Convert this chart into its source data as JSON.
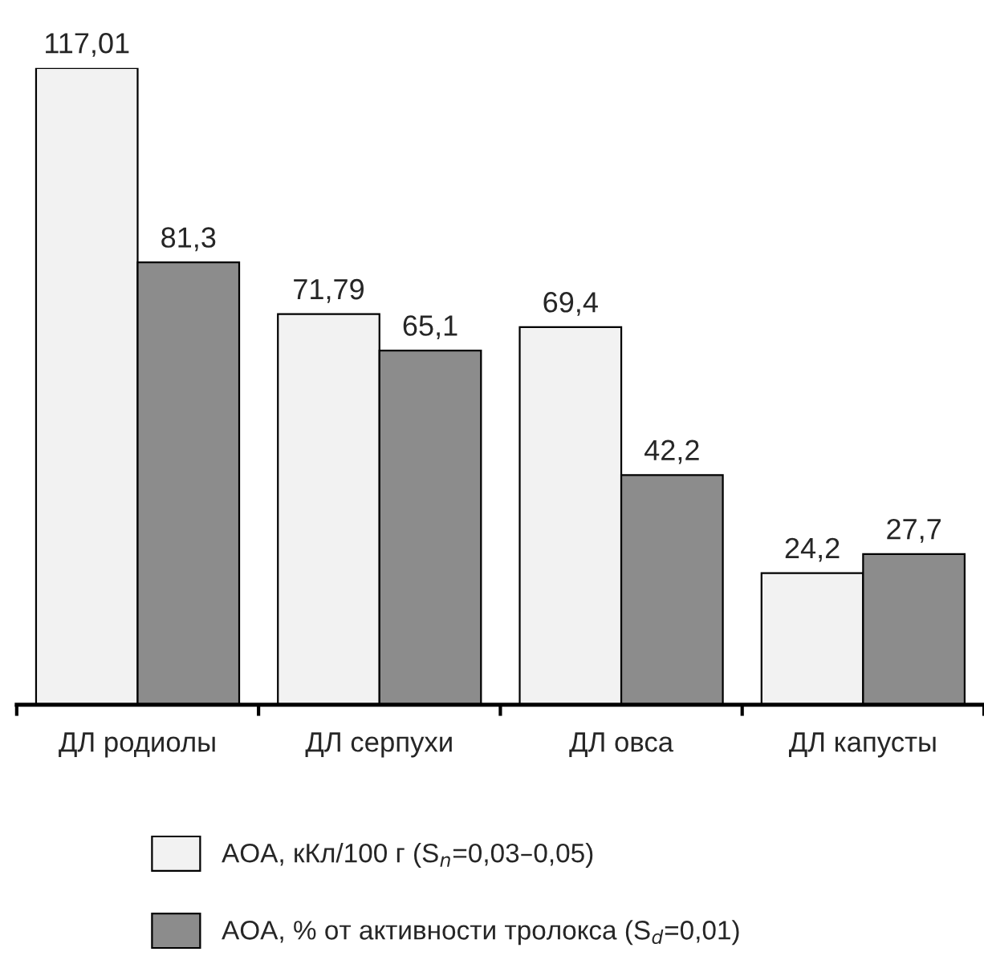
{
  "chart_data": {
    "type": "bar",
    "categories": [
      "ДЛ родиолы",
      "ДЛ серпухи",
      "ДЛ овса",
      "ДЛ капусты"
    ],
    "series": [
      {
        "name": "АОА, кКл/100 г (S$_{n}$=0,03–0,05)",
        "color": "#f2f2f2",
        "values": [
          117.01,
          71.79,
          69.4,
          24.2
        ],
        "value_labels": [
          "117,01",
          "71,79",
          "69,4",
          "24,2"
        ]
      },
      {
        "name": "АОА, % от активности тролокса (S$_{d}$=0,01)",
        "color": "#8c8c8c",
        "values": [
          81.3,
          65.1,
          42.2,
          27.7
        ],
        "value_labels": [
          "81,3",
          "65,1",
          "42,2",
          "27,7"
        ]
      }
    ],
    "legend": "bottom",
    "grid": false
  }
}
